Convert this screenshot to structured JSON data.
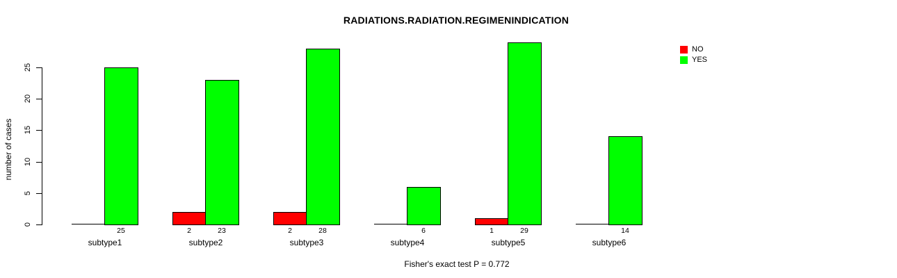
{
  "chart_data": {
    "type": "bar",
    "title": "RADIATIONS.RADIATION.REGIMENINDICATION",
    "ylabel": "number of cases",
    "xlabel": "",
    "caption": "Fisher's exact test P = 0.772",
    "categories": [
      "subtype1",
      "subtype2",
      "subtype3",
      "subtype4",
      "subtype5",
      "subtype6"
    ],
    "series": [
      {
        "name": "NO",
        "color": "#ff0000",
        "values": [
          0,
          2,
          2,
          0,
          1,
          0
        ]
      },
      {
        "name": "YES",
        "color": "#00ff00",
        "values": [
          25,
          23,
          28,
          6,
          29,
          14
        ]
      }
    ],
    "bar_value_labels": [
      [
        "",
        "25"
      ],
      [
        "2",
        "23"
      ],
      [
        "2",
        "28"
      ],
      [
        "",
        "6"
      ],
      [
        "1",
        "29"
      ],
      [
        "",
        "14"
      ]
    ],
    "yticks": [
      0,
      5,
      10,
      15,
      20,
      25
    ],
    "ylim": [
      0,
      29
    ],
    "grid": false,
    "legend": {
      "position": "top-right",
      "entries": [
        {
          "label": "NO",
          "color": "#ff0000"
        },
        {
          "label": "YES",
          "color": "#00ff00"
        }
      ]
    }
  },
  "colors": {
    "background": "#ffffff",
    "bar_border": "#000000",
    "axis": "#000000",
    "text": "#000000"
  }
}
